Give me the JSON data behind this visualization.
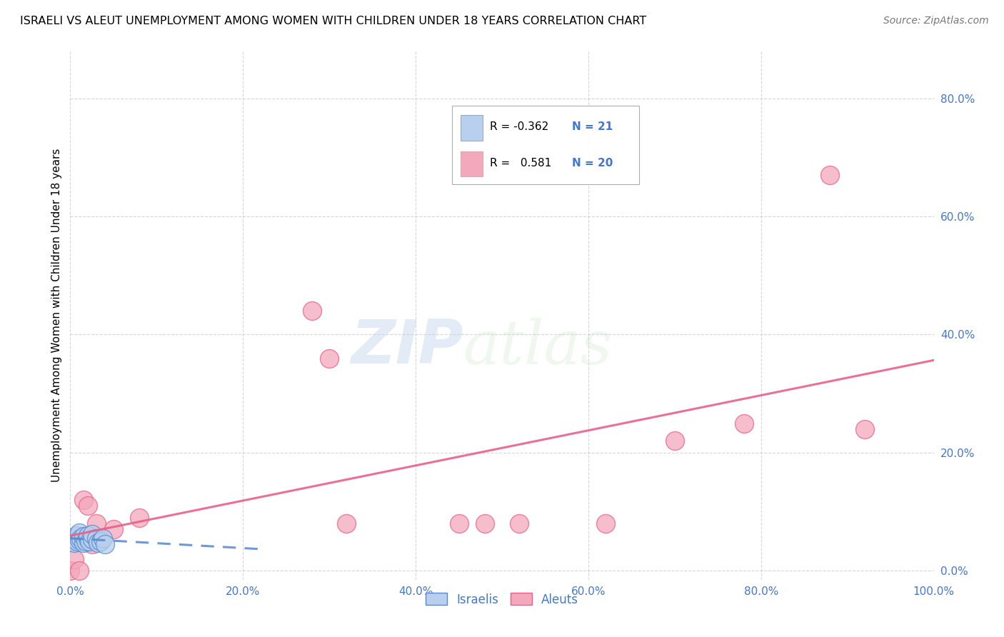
{
  "title": "ISRAELI VS ALEUT UNEMPLOYMENT AMONG WOMEN WITH CHILDREN UNDER 18 YEARS CORRELATION CHART",
  "source": "Source: ZipAtlas.com",
  "ylabel": "Unemployment Among Women with Children Under 18 years",
  "xlim": [
    0.0,
    1.0
  ],
  "ylim": [
    -0.015,
    0.88
  ],
  "xticks": [
    0.0,
    0.2,
    0.4,
    0.6,
    0.8,
    1.0
  ],
  "xticklabels": [
    "0.0%",
    "20.0%",
    "40.0%",
    "60.0%",
    "80.0%",
    "100.0%"
  ],
  "ytick_positions": [
    0.0,
    0.2,
    0.4,
    0.6,
    0.8
  ],
  "yticklabels": [
    "0.0%",
    "20.0%",
    "40.0%",
    "60.0%",
    "80.0%"
  ],
  "legend_r_israeli": "-0.362",
  "legend_n_israeli": "21",
  "legend_r_aleut": "0.581",
  "legend_n_aleut": "20",
  "israeli_color": "#b8d0ee",
  "aleut_color": "#f4a8bc",
  "israeli_line_color": "#5588cc",
  "aleut_line_color": "#e8608a",
  "israeli_scatter_x": [
    0.0,
    0.003,
    0.005,
    0.007,
    0.008,
    0.01,
    0.01,
    0.012,
    0.015,
    0.015,
    0.018,
    0.02,
    0.02,
    0.022,
    0.025,
    0.025,
    0.03,
    0.032,
    0.035,
    0.038,
    0.04
  ],
  "israeli_scatter_y": [
    0.05,
    0.055,
    0.048,
    0.06,
    0.05,
    0.052,
    0.065,
    0.055,
    0.048,
    0.058,
    0.05,
    0.055,
    0.06,
    0.05,
    0.053,
    0.062,
    0.055,
    0.048,
    0.05,
    0.055,
    0.045
  ],
  "aleut_scatter_x": [
    0.0,
    0.005,
    0.01,
    0.015,
    0.02,
    0.025,
    0.03,
    0.05,
    0.08,
    0.28,
    0.3,
    0.32,
    0.45,
    0.48,
    0.52,
    0.62,
    0.7,
    0.78,
    0.88,
    0.92
  ],
  "aleut_scatter_y": [
    0.0,
    0.02,
    0.0,
    0.12,
    0.11,
    0.045,
    0.08,
    0.07,
    0.09,
    0.44,
    0.36,
    0.08,
    0.08,
    0.08,
    0.08,
    0.08,
    0.22,
    0.25,
    0.67,
    0.24
  ],
  "watermark_zip": "ZIP",
  "watermark_atlas": "atlas",
  "bg_color": "#ffffff",
  "grid_color": "#cccccc",
  "tick_color": "#4477cc",
  "title_fontsize": 11.5,
  "source_fontsize": 10,
  "axis_fontsize": 11,
  "tick_fontsize": 11
}
